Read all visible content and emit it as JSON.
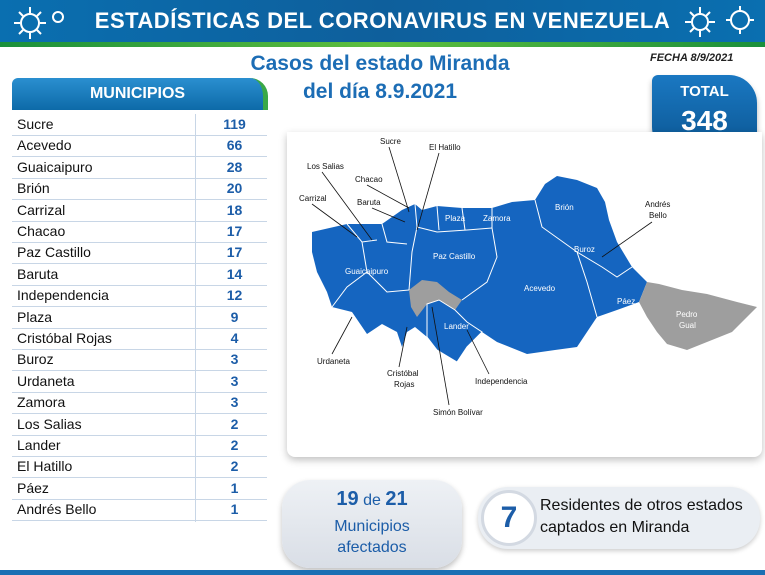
{
  "header": {
    "title": "ESTADÍSTICAS DEL CORONAVIRUS EN VENEZUELA"
  },
  "subtitle": {
    "line1": "Casos del estado Miranda",
    "line2": "del día 8.9.2021"
  },
  "fecha": "FECHA 8/9/2021",
  "municipios_header": "MUNICIPIOS",
  "municipios": [
    {
      "name": "Sucre",
      "value": "119"
    },
    {
      "name": "Acevedo",
      "value": "66"
    },
    {
      "name": "Guaicaipuro",
      "value": "28"
    },
    {
      "name": "Brión",
      "value": "20"
    },
    {
      "name": "Carrizal",
      "value": "18"
    },
    {
      "name": "Chacao",
      "value": "17"
    },
    {
      "name": "Paz Castillo",
      "value": "17"
    },
    {
      "name": "Baruta",
      "value": "14"
    },
    {
      "name": "Independencia",
      "value": "12"
    },
    {
      "name": "Plaza",
      "value": "9"
    },
    {
      "name": "Cristóbal Rojas",
      "value": "4"
    },
    {
      "name": "Buroz",
      "value": "3"
    },
    {
      "name": "Urdaneta",
      "value": "3"
    },
    {
      "name": "Zamora",
      "value": "3"
    },
    {
      "name": "Los Salias",
      "value": "2"
    },
    {
      "name": "Lander",
      "value": "2"
    },
    {
      "name": "El Hatillo",
      "value": "2"
    },
    {
      "name": "Páez",
      "value": "1"
    },
    {
      "name": "Andrés Bello",
      "value": "1"
    }
  ],
  "total": {
    "label": "TOTAL",
    "value": "348"
  },
  "map": {
    "labels": {
      "sucre": "Sucre",
      "el_hatillo": "El Hatillo",
      "los_salias": "Los Salias",
      "chacao": "Chacao",
      "carrizal": "Carrizal",
      "baruta": "Baruta",
      "plaza": "Plaza",
      "zamora": "Zamora",
      "brion": "Brión",
      "andres_bello_1": "Andrés",
      "andres_bello_2": "Bello",
      "buroz": "Buroz",
      "guaicaipuro": "Guaicaipuro",
      "paz_castillo": "Paz Castillo",
      "acevedo": "Acevedo",
      "paez": "Páez",
      "pedro_gual_1": "Pedro",
      "pedro_gual_2": "Gual",
      "lander": "Lander",
      "urdaneta": "Urdaneta",
      "cristobal_rojas_1": "Cristóbal",
      "cristobal_rojas_2": "Rojas",
      "independencia": "Independencia",
      "simon_bolivar": "Simón Bolívar"
    },
    "colors": {
      "affected": "#1565c0",
      "unaffected": "#9e9e9e"
    }
  },
  "afectados": {
    "num": "19",
    "de": "de",
    "total": "21",
    "line1": "Municipios",
    "line2": "afectados"
  },
  "residentes": {
    "num": "7",
    "line1": "Residentes de otros estados",
    "line2": "captados en Miranda"
  }
}
